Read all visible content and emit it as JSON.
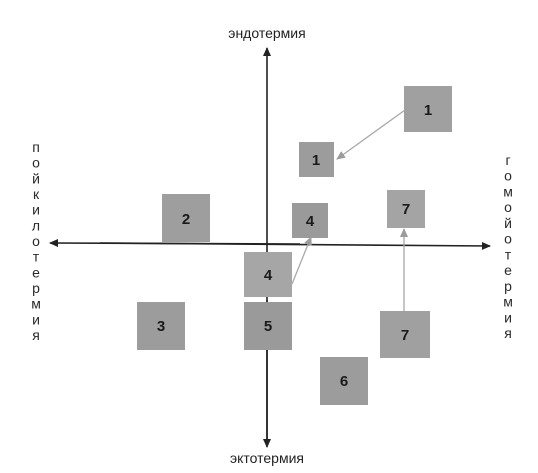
{
  "axes": {
    "top_label": "эндотермия",
    "bottom_label": "эктотермия",
    "left_label": "пойкилотермия",
    "right_label": "гомойотермия"
  },
  "boxes": [
    {
      "label": "1"
    },
    {
      "label": "1"
    },
    {
      "label": "2"
    },
    {
      "label": "4"
    },
    {
      "label": "7"
    },
    {
      "label": "4"
    },
    {
      "label": "3"
    },
    {
      "label": "5"
    },
    {
      "label": "7"
    },
    {
      "label": "6"
    }
  ],
  "colors": {
    "box_fill": "#9a9a9a",
    "box_fill_light": "#a8a8a8",
    "axis": "#222222",
    "arrow": "#b0b0b0"
  }
}
